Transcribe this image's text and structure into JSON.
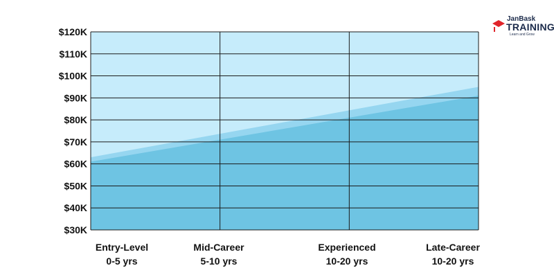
{
  "logo": {
    "top_text": "JanBask",
    "main_text": "TRAINING",
    "tagline": "Learn and Grow",
    "colors": {
      "text": "#1b2a4a",
      "accent": "#e0252b"
    }
  },
  "chart_data": {
    "type": "area",
    "categories": [
      {
        "line1": "Entry-Level",
        "line2": "0-5 yrs"
      },
      {
        "line1": "Mid-Career",
        "line2": "5-10 yrs"
      },
      {
        "line1": "Experienced",
        "line2": "10-20 yrs"
      },
      {
        "line1": "Late-Career",
        "line2": "10-20 yrs"
      }
    ],
    "series": [
      {
        "values_start_end": [
          63000,
          95000
        ],
        "color": "#96d6f0"
      },
      {
        "values_start_end": [
          61000,
          91000
        ],
        "color": "#6ec4e3"
      }
    ],
    "ylim": [
      30000,
      120000
    ],
    "yticks": [
      "$120K",
      "$110K",
      "$100K",
      "$90K",
      "$80K",
      "$70K",
      "$60K",
      "$50K",
      "$40K",
      "$30K"
    ],
    "grid": true,
    "plot_background": "#c6ecfb",
    "grid_color": "#1a1a1a",
    "title": "",
    "xlabel": "",
    "ylabel": ""
  }
}
